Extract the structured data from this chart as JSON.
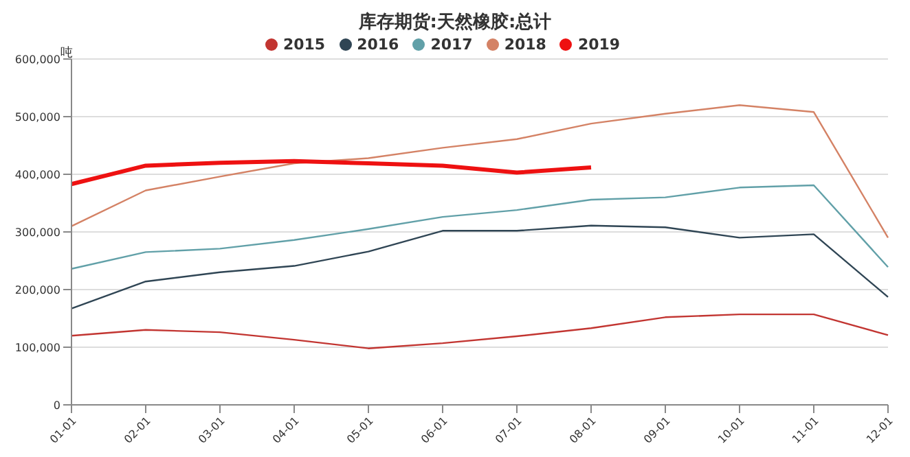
{
  "chart_data": {
    "type": "line",
    "title": "库存期货:天然橡胶:总计",
    "ylabel": "吨",
    "categories": [
      "01-01",
      "02-01",
      "03-01",
      "04-01",
      "05-01",
      "06-01",
      "07-01",
      "08-01",
      "09-01",
      "10-01",
      "11-01",
      "12-01"
    ],
    "series": [
      {
        "name": "2015",
        "color": "#c23531",
        "values": [
          120000,
          130000,
          126000,
          113000,
          98000,
          107000,
          119000,
          133000,
          152000,
          157000,
          157000,
          121000
        ]
      },
      {
        "name": "2016",
        "color": "#2f4554",
        "values": [
          167000,
          214000,
          230000,
          241000,
          266000,
          302000,
          302000,
          311000,
          308000,
          290000,
          296000,
          187000
        ]
      },
      {
        "name": "2017",
        "color": "#61a0a8",
        "values": [
          236000,
          265000,
          271000,
          286000,
          305000,
          326000,
          338000,
          356000,
          360000,
          377000,
          381000,
          239000
        ]
      },
      {
        "name": "2018",
        "color": "#d48265",
        "values": [
          310000,
          372000,
          396000,
          419000,
          428000,
          446000,
          461000,
          488000,
          505000,
          520000,
          508000,
          290000
        ]
      },
      {
        "name": "2019",
        "color": "#ee1111",
        "values": [
          383000,
          415000,
          420000,
          423000,
          419000,
          415000,
          403000,
          412000,
          null,
          null,
          null,
          null
        ]
      }
    ],
    "ylim": [
      0,
      600000
    ],
    "yticks": [
      0,
      {
        "value": 100000,
        "label": "100,000"
      },
      {
        "value": 200000,
        "label": "200,000"
      },
      {
        "value": 300000,
        "label": "300,000"
      },
      {
        "value": 400000,
        "label": "400,000"
      },
      {
        "value": 500000,
        "label": "500,000"
      },
      {
        "value": 600000,
        "label": "600,000"
      }
    ],
    "grid": "y",
    "legend": "top",
    "marker": "none",
    "line_style": "solid"
  }
}
